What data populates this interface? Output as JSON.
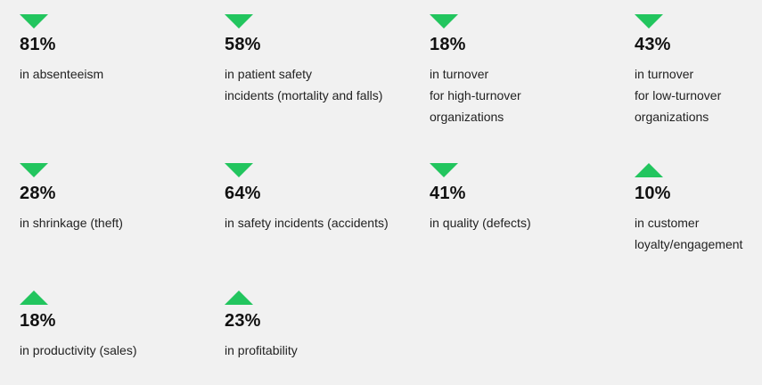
{
  "accent_color": "#22c55e",
  "stats": [
    {
      "direction": "down",
      "icon": "triangle-down-icon",
      "value": "81%",
      "lines": [
        "in absenteeism"
      ]
    },
    {
      "direction": "down",
      "icon": "triangle-down-icon",
      "value": "58%",
      "lines": [
        "in patient safety",
        "incidents (mortality and falls)"
      ]
    },
    {
      "direction": "down",
      "icon": "triangle-down-icon",
      "value": "18%",
      "lines": [
        "in turnover",
        "for high-turnover",
        "organizations"
      ]
    },
    {
      "direction": "down",
      "icon": "triangle-down-icon",
      "value": "43%",
      "lines": [
        "in turnover",
        "for low-turnover",
        "organizations"
      ]
    },
    {
      "direction": "down",
      "icon": "triangle-down-icon",
      "value": "28%",
      "lines": [
        "in shrinkage (theft)"
      ]
    },
    {
      "direction": "down",
      "icon": "triangle-down-icon",
      "value": "64%",
      "lines": [
        "in safety incidents (accidents)"
      ]
    },
    {
      "direction": "down",
      "icon": "triangle-down-icon",
      "value": "41%",
      "lines": [
        "in quality (defects)"
      ]
    },
    {
      "direction": "up",
      "icon": "triangle-up-icon",
      "value": "10%",
      "lines": [
        "in customer",
        "loyalty/engagement"
      ]
    },
    {
      "direction": "up",
      "icon": "triangle-up-icon",
      "value": "18%",
      "lines": [
        "in productivity (sales)"
      ]
    },
    {
      "direction": "up",
      "icon": "triangle-up-icon",
      "value": "23%",
      "lines": [
        "in profitability"
      ]
    }
  ]
}
